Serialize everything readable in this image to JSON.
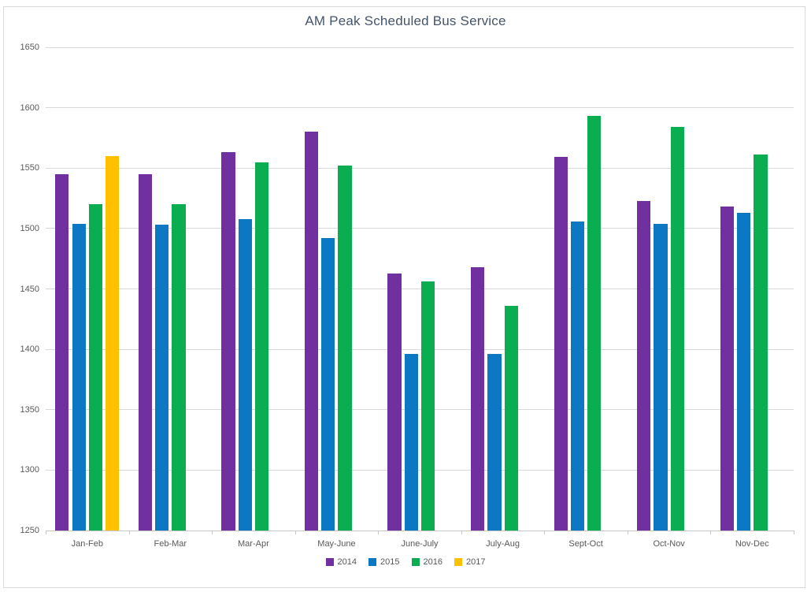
{
  "chart_data": {
    "type": "bar",
    "title": "AM Peak Scheduled Bus Service",
    "categories": [
      "Jan-Feb",
      "Feb-Mar",
      "Mar-Apr",
      "May-June",
      "June-July",
      "July-Aug",
      "Sept-Oct",
      "Oct-Nov",
      "Nov-Dec"
    ],
    "series": [
      {
        "name": "2014",
        "color": "#7030A0",
        "values": [
          1545,
          1545,
          1563,
          1580,
          1463,
          1468,
          1559,
          1523,
          1518
        ]
      },
      {
        "name": "2015",
        "color": "#0C77C2",
        "values": [
          1504,
          1503,
          1508,
          1492,
          1396,
          1396,
          1506,
          1504,
          1513
        ]
      },
      {
        "name": "2016",
        "color": "#0BAD51",
        "values": [
          1520,
          1520,
          1555,
          1552,
          1456,
          1436,
          1593,
          1584,
          1561
        ]
      },
      {
        "name": "2017",
        "color": "#FFC000",
        "values": [
          1560,
          null,
          null,
          null,
          null,
          null,
          null,
          null,
          null
        ]
      }
    ],
    "xlabel": "",
    "ylabel": "",
    "ylim": [
      1250,
      1650
    ],
    "yticks": [
      "1650",
      "1600",
      "1550",
      "1500",
      "1450",
      "1400",
      "1350",
      "1300",
      "1250"
    ],
    "grid": true,
    "legend_position": "bottom",
    "gridline_color": "#D9D9D9",
    "axis_line_color": "#C6C6C6",
    "tick_label_color": "#595959",
    "title_color": "#44546A"
  }
}
